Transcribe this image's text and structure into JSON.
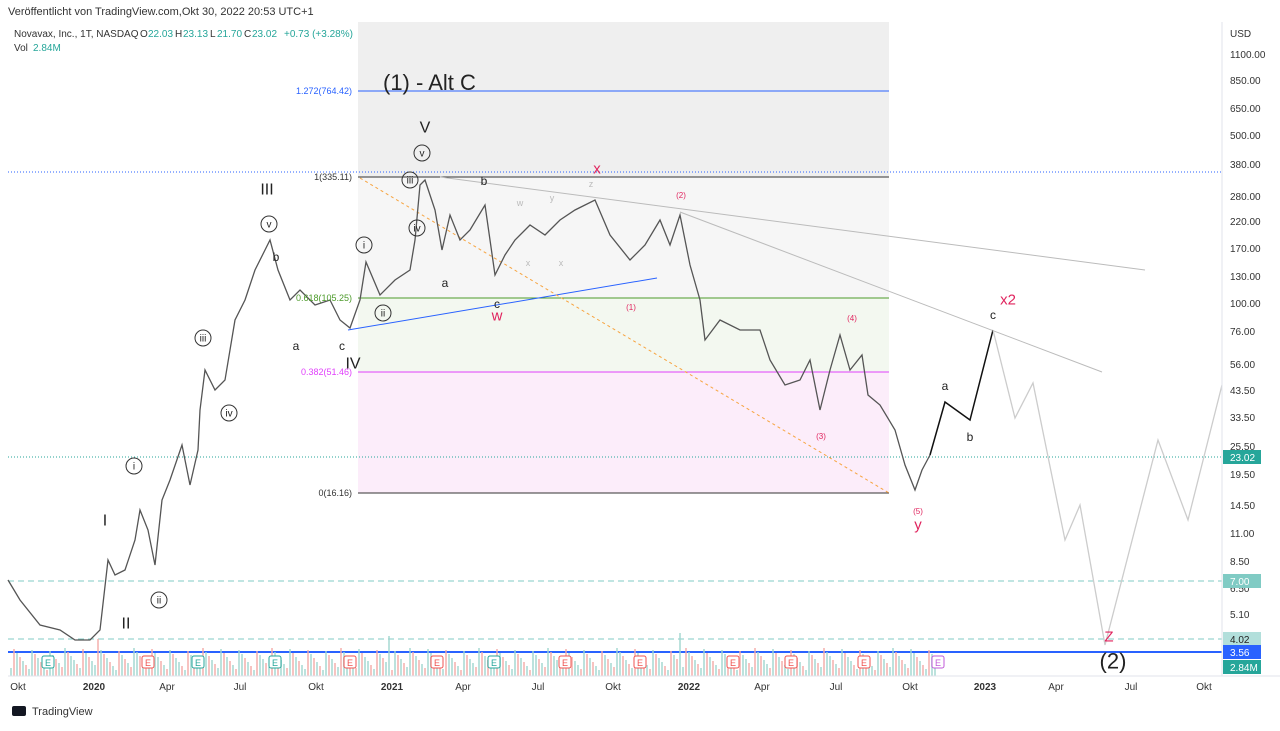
{
  "header": {
    "published": "Veröffentlicht von TradingView.com,Okt 30, 2022 20:53 UTC+1",
    "symbol": "Novavax, Inc., 1T, NASDAQ",
    "o_label": "O",
    "o": "22.03",
    "h_label": "H",
    "h": "23.13",
    "l_label": "L",
    "l": "21.70",
    "c_label": "C",
    "c": "23.02",
    "change": "+0.73 (+3.28%)",
    "vol_label": "Vol",
    "vol": "2.84M"
  },
  "price_axis": {
    "currency": "USD",
    "labels": [
      "1100.00",
      "850.00",
      "650.00",
      "500.00",
      "380.00",
      "280.00",
      "220.00",
      "170.00",
      "130.00",
      "100.00",
      "76.00",
      "56.00",
      "43.50",
      "33.50",
      "25.50",
      "19.50",
      "14.50",
      "11.00",
      "8.50",
      "6.50",
      "5.10"
    ]
  },
  "price_tags": [
    "23.02",
    "7.00",
    "4.02",
    "3.56",
    "2.84M"
  ],
  "time_axis": [
    "Okt",
    "2020",
    "Apr",
    "Jul",
    "Okt",
    "2021",
    "Apr",
    "Jul",
    "Okt",
    "2022",
    "Apr",
    "Jul",
    "Okt",
    "2023",
    "Apr",
    "Jul",
    "Okt"
  ],
  "fib_levels": [
    "1.272(764.42)",
    "1(335.11)",
    "0.618(105.25)",
    "0.382(51.46)",
    "0(16.16)"
  ],
  "annotation_title": "(1) - Alt C",
  "wave_labels": [
    "V",
    "III",
    "IV",
    "I",
    "II",
    "v",
    "iii",
    "iv",
    "i",
    "ii",
    "v",
    "iii",
    "iv",
    "i",
    "ii",
    "b",
    "a",
    "c",
    "a",
    "b",
    "c",
    "x",
    "w",
    "x2",
    "y",
    "Z",
    "(2)",
    "(2)",
    "(1)",
    "(4)",
    "(3)",
    "(5)",
    "a",
    "b",
    "c",
    "w",
    "y",
    "z",
    "x",
    "x"
  ],
  "earnings_marker": "E",
  "footer": "TradingView"
}
